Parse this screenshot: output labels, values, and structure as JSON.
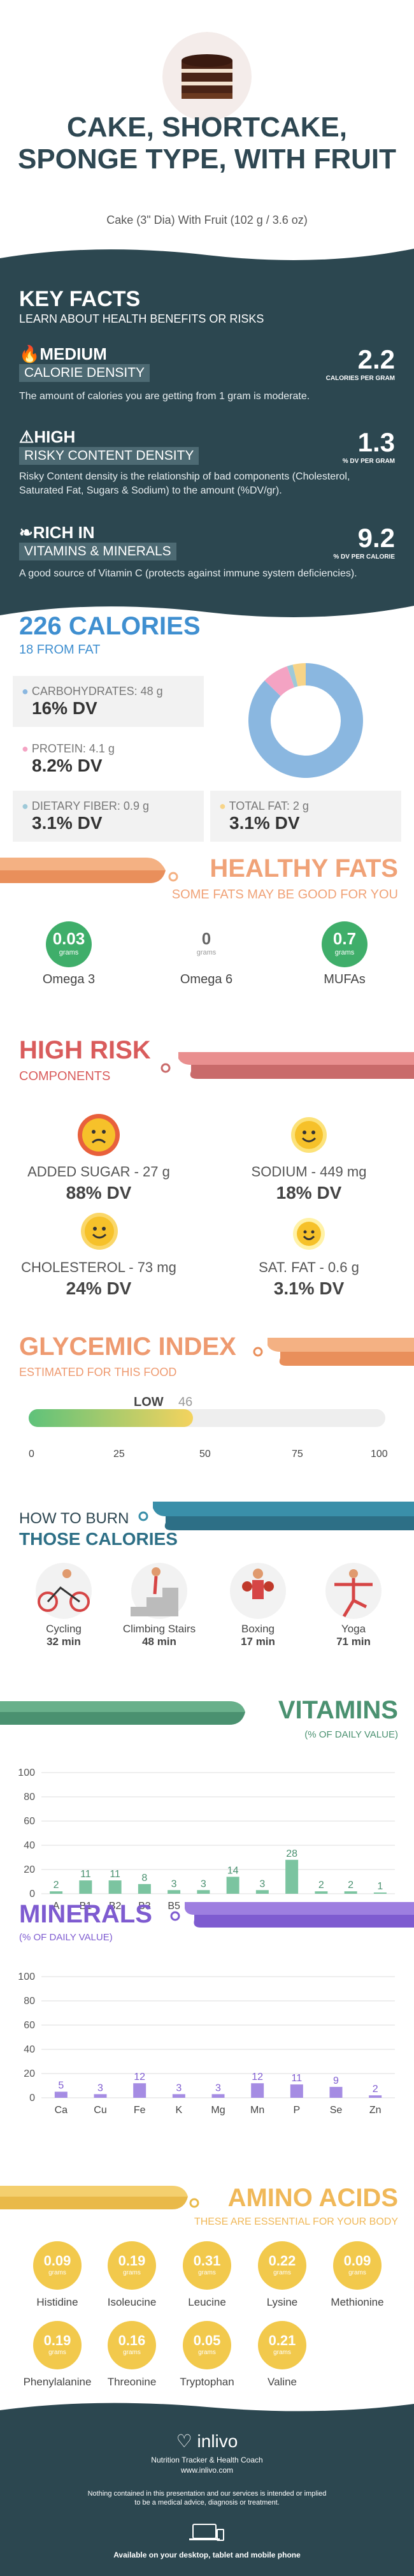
{
  "header": {
    "title": "CAKE, SHORTCAKE, SPONGE TYPE, WITH FRUIT",
    "subtitle": "Cake (3\" Dia) With Fruit (102 g / 3.6 oz)"
  },
  "key_facts": {
    "title": "KEY FACTS",
    "subtitle": "LEARN ABOUT HEALTH BENEFITS OR RISKS",
    "items": [
      {
        "tag": "MEDIUM",
        "label": "CALORIE DENSITY",
        "value": "2.2",
        "unit": "CALORIES PER GRAM",
        "desc": "The amount of calories you are getting from 1 gram is moderate."
      },
      {
        "tag": "HIGH",
        "label": "RISKY CONTENT DENSITY",
        "value": "1.3",
        "unit": "% DV PER GRAM",
        "desc": "Risky Content density is the relationship of bad components (Cholesterol, Saturated Fat, Sugars & Sodium) to the amount (%DV/gr)."
      },
      {
        "tag": "RICH IN",
        "label": "VITAMINS & MINERALS",
        "value": "9.2",
        "unit": "% DV PER CALORIE",
        "desc": "A good source of Vitamin C (protects against immune system deficiencies)."
      }
    ]
  },
  "calories": {
    "title": "226 CALORIES",
    "subtitle": "18 FROM FAT",
    "carb_label": "CARBOHYDRATES: 48 g",
    "carb_dv": "16% DV",
    "protein_label": "PROTEIN: 4.1 g",
    "protein_dv": "8.2% DV",
    "fiber_label": "DIETARY FIBER: 0.9 g",
    "fiber_dv": "3.1% DV",
    "fat_label": "TOTAL FAT: 2 g",
    "fat_dv": "3.1% DV",
    "colors": {
      "carb": "#8ab7e0",
      "protein": "#f4a3c3",
      "fiber": "#9ec9d8",
      "fat": "#f7d488"
    },
    "donut": [
      48,
      4.1,
      0.9,
      2
    ]
  },
  "healthy_fats": {
    "title": "HEALTHY FATS",
    "subtitle": "SOME FATS MAY BE GOOD FOR YOU",
    "unit": "grams",
    "items": [
      {
        "name": "Omega 3",
        "value": "0.03"
      },
      {
        "name": "Omega 6",
        "value": "0"
      },
      {
        "name": "MUFAs",
        "value": "0.7"
      }
    ]
  },
  "high_risk": {
    "title": "HIGH RISK",
    "subtitle": "COMPONENTS",
    "items": [
      {
        "label": "ADDED SUGAR - 27 g",
        "dv": "88% DV"
      },
      {
        "label": "SODIUM - 449 mg",
        "dv": "18% DV"
      },
      {
        "label": "CHOLESTEROL - 73 mg",
        "dv": "24% DV"
      },
      {
        "label": "SAT. FAT - 0.6 g",
        "dv": "3.1% DV"
      }
    ]
  },
  "glycemic": {
    "title": "GLYCEMIC INDEX",
    "subtitle": "ESTIMATED FOR THIS FOOD",
    "level": "LOW",
    "value": "46",
    "ticks": [
      "0",
      "25",
      "50",
      "75",
      "100"
    ],
    "fraction": 0.46
  },
  "burn": {
    "title1": "HOW TO BURN",
    "title2": "THOSE CALORIES",
    "items": [
      {
        "name": "Cycling",
        "time": "32 min"
      },
      {
        "name": "Climbing Stairs",
        "time": "48 min"
      },
      {
        "name": "Boxing",
        "time": "17 min"
      },
      {
        "name": "Yoga",
        "time": "71 min"
      }
    ]
  },
  "vitamins": {
    "title": "VITAMINS",
    "subtitle": "(% OF DAILY VALUE)"
  },
  "minerals": {
    "title": "MINERALS",
    "subtitle": "(% OF DAILY VALUE)"
  },
  "chart_data": [
    {
      "type": "bar",
      "categories": [
        "A",
        "B1",
        "B2",
        "B3",
        "B5",
        "B6",
        "B9",
        "B12",
        "C",
        "D",
        "E",
        "K"
      ],
      "values": [
        2,
        11,
        11,
        8,
        3,
        3,
        14,
        3,
        28,
        2,
        2,
        1
      ],
      "ylim": [
        0,
        100
      ],
      "yticks": [
        "0",
        "20",
        "40",
        "60",
        "80",
        "100"
      ]
    },
    {
      "type": "bar",
      "categories": [
        "Ca",
        "Cu",
        "Fe",
        "K",
        "Mg",
        "Mn",
        "P",
        "Se",
        "Zn"
      ],
      "values": [
        5,
        3,
        12,
        3,
        3,
        12,
        11,
        9,
        2
      ],
      "ylim": [
        0,
        100
      ],
      "yticks": [
        "0",
        "20",
        "40",
        "60",
        "80",
        "100"
      ]
    }
  ],
  "amino": {
    "title": "AMINO ACIDS",
    "subtitle": "THESE ARE ESSENTIAL FOR YOUR BODY",
    "unit": "grams",
    "items": [
      {
        "name": "Histidine",
        "value": "0.09"
      },
      {
        "name": "Isoleucine",
        "value": "0.19"
      },
      {
        "name": "Leucine",
        "value": "0.31"
      },
      {
        "name": "Lysine",
        "value": "0.22"
      },
      {
        "name": "Methionine",
        "value": "0.09"
      },
      {
        "name": "Phenylalanine",
        "value": "0.19"
      },
      {
        "name": "Threonine",
        "value": "0.16"
      },
      {
        "name": "Tryptophan",
        "value": "0.05"
      },
      {
        "name": "Valine",
        "value": "0.21"
      }
    ]
  },
  "footer": {
    "brand": "inlivo",
    "tagline": "Nutrition Tracker & Health Coach",
    "url": "www.inlivo.com",
    "disclaimer1": "Nothing contained in this presentation and our services is intended or implied",
    "disclaimer2": "to be a medical advice, diagnosis or treatment.",
    "available": "Available on your desktop, tablet and mobile phone"
  }
}
